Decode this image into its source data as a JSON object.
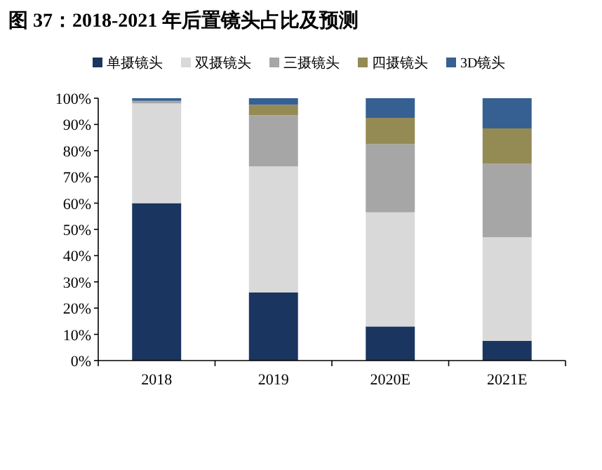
{
  "chart_data": {
    "type": "bar",
    "stacked": true,
    "title": "图 37：2018-2021 年后置镜头占比及预测",
    "categories": [
      "2018",
      "2019",
      "2020E",
      "2021E"
    ],
    "series": [
      {
        "name": "单摄镜头",
        "color": "#1a3560",
        "values": [
          60,
          26,
          13,
          7.5
        ]
      },
      {
        "name": "双摄镜头",
        "color": "#d9d9d9",
        "values": [
          38,
          48,
          43.5,
          39.5
        ]
      },
      {
        "name": "三摄镜头",
        "color": "#a6a6a6",
        "values": [
          1,
          19.5,
          26,
          28
        ]
      },
      {
        "name": "四摄镜头",
        "color": "#948a54",
        "values": [
          0,
          4,
          10,
          13.5
        ]
      },
      {
        "name": "3D镜头",
        "color": "#366092",
        "values": [
          1,
          2.5,
          7.5,
          11.5
        ]
      }
    ],
    "ylim": [
      0,
      100
    ],
    "yticks": [
      {
        "value": 0,
        "label": "0%"
      },
      {
        "value": 10,
        "label": "10%"
      },
      {
        "value": 20,
        "label": "20%"
      },
      {
        "value": 30,
        "label": "30%"
      },
      {
        "value": 40,
        "label": "40%"
      },
      {
        "value": 50,
        "label": "50%"
      },
      {
        "value": 60,
        "label": "60%"
      },
      {
        "value": 70,
        "label": "70%"
      },
      {
        "value": 80,
        "label": "80%"
      },
      {
        "value": 90,
        "label": "90%"
      },
      {
        "value": 100,
        "label": "100%"
      }
    ],
    "grid": false,
    "legend": "top"
  }
}
